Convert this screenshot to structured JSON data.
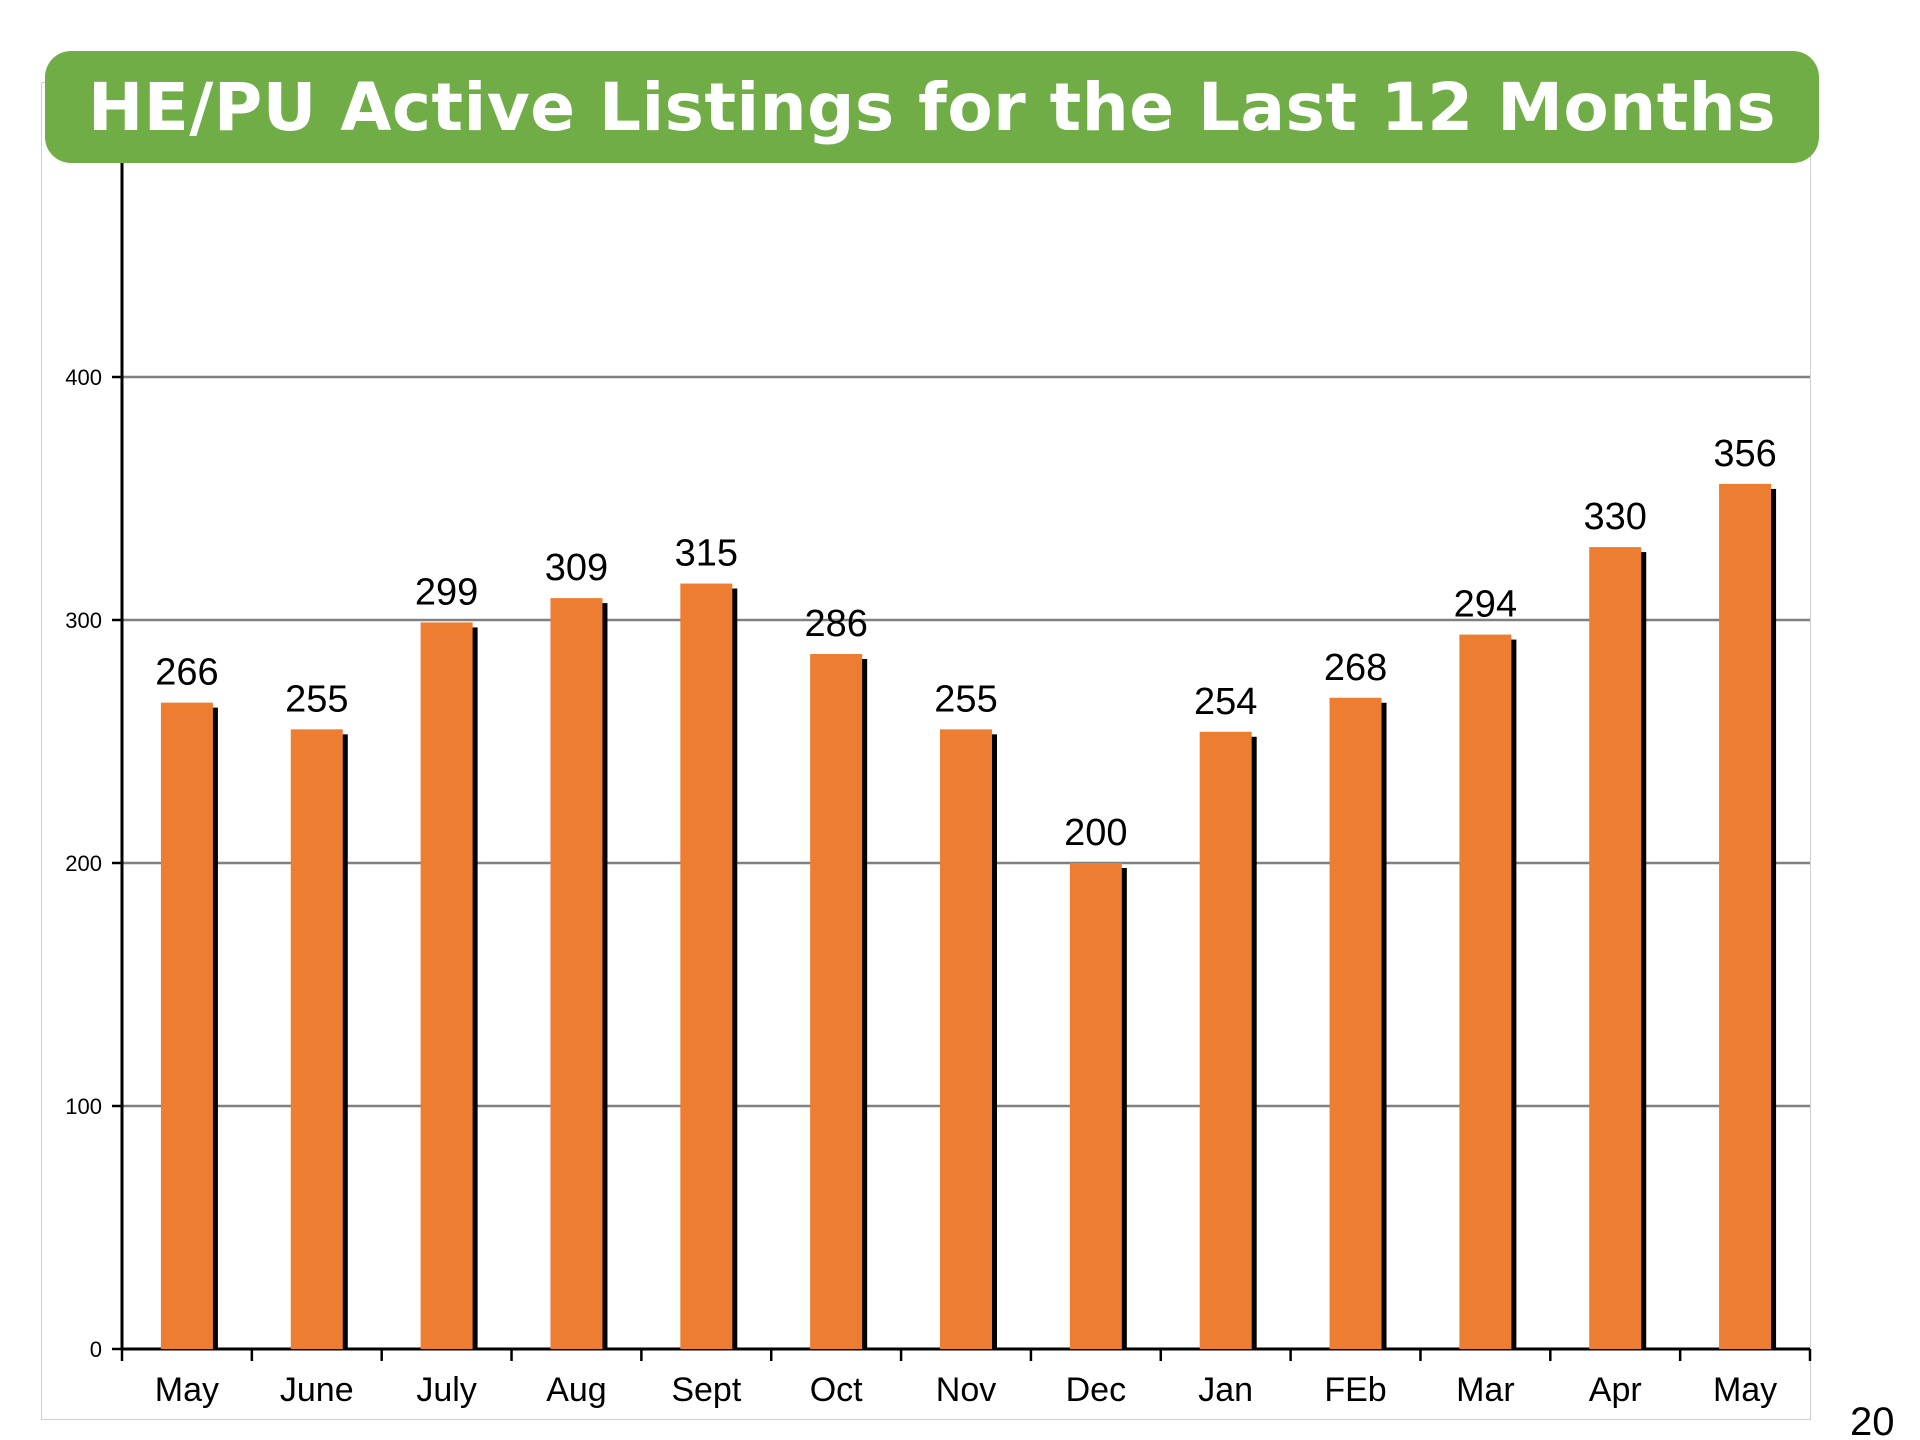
{
  "page_number": "20",
  "colors": {
    "banner": "#70ad47",
    "bar": "#ed7d31",
    "bar_shadow": "#000000",
    "grid": "#808080",
    "axis": "#000000"
  },
  "chart_data": {
    "type": "bar",
    "title": "HE/PU Active Listings for the Last 12 Months",
    "xlabel": "",
    "ylabel": "",
    "categories": [
      "May",
      "June",
      "July",
      "Aug",
      "Sept",
      "Oct",
      "Nov",
      "Dec",
      "Jan",
      "FEb",
      "Mar",
      "Apr",
      "May"
    ],
    "values": [
      266,
      255,
      299,
      309,
      315,
      286,
      255,
      200,
      254,
      268,
      294,
      330,
      356
    ],
    "ylim": [
      0,
      400
    ],
    "yticks": [
      0,
      100,
      200,
      300,
      400
    ],
    "grid": true,
    "legend": "none",
    "data_labels": true
  }
}
